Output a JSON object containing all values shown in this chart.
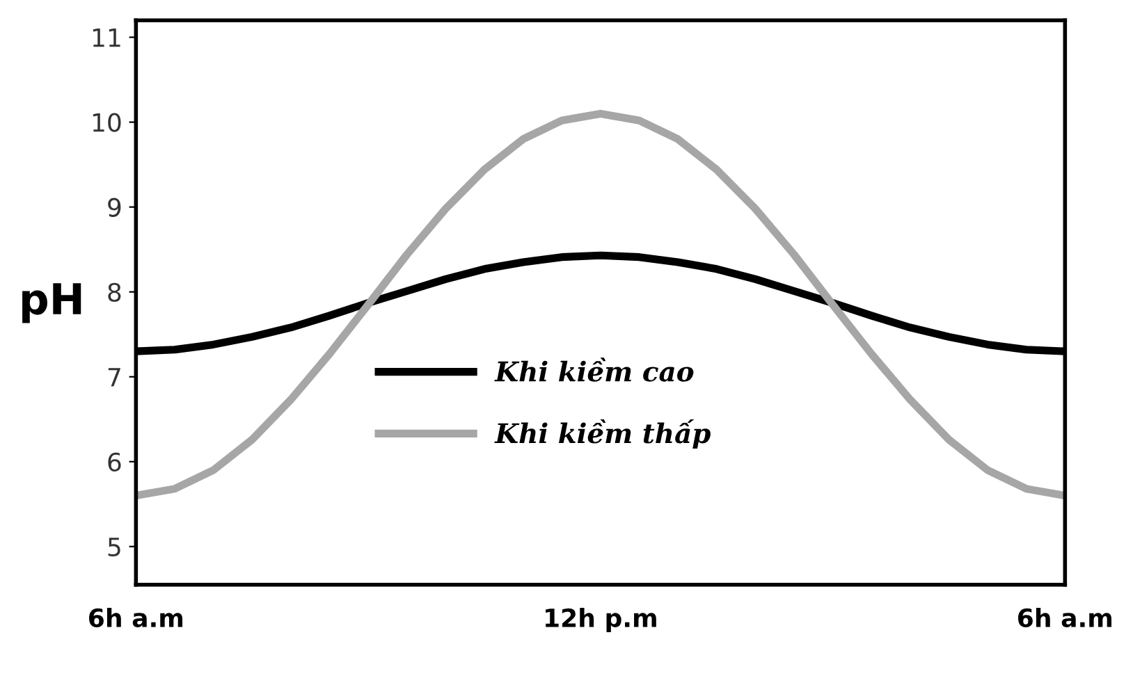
{
  "chart_data": {
    "type": "line",
    "categories": [
      "6h a.m",
      null,
      null,
      null,
      null,
      null,
      null,
      null,
      null,
      null,
      null,
      null,
      "12h p.m",
      null,
      null,
      null,
      null,
      null,
      null,
      null,
      null,
      null,
      null,
      null,
      "6h a.m"
    ],
    "ylabel": "pH",
    "ylim": [
      4.55,
      11.2
    ],
    "yticks": [
      5,
      6,
      7,
      8,
      9,
      10,
      11
    ],
    "grid": false,
    "legend": "center",
    "marker": "none",
    "line_style": "solid",
    "series": [
      {
        "name": "Khi kiềm cao",
        "color": "#000000",
        "values": [
          7.3,
          7.32,
          7.38,
          7.47,
          7.58,
          7.72,
          7.87,
          8.01,
          8.15,
          8.27,
          8.35,
          8.41,
          8.43,
          8.41,
          8.35,
          8.27,
          8.15,
          8.01,
          7.87,
          7.72,
          7.58,
          7.47,
          7.38,
          7.32,
          7.3
        ]
      },
      {
        "name": "Khi kiềm thấp",
        "color": "#a6a6a6",
        "values": [
          5.6,
          5.68,
          5.9,
          6.26,
          6.73,
          7.27,
          7.85,
          8.44,
          8.98,
          9.44,
          9.8,
          10.02,
          10.1,
          10.02,
          9.8,
          9.44,
          8.98,
          8.44,
          7.85,
          7.27,
          6.73,
          6.26,
          5.9,
          5.68,
          5.6
        ]
      }
    ]
  }
}
